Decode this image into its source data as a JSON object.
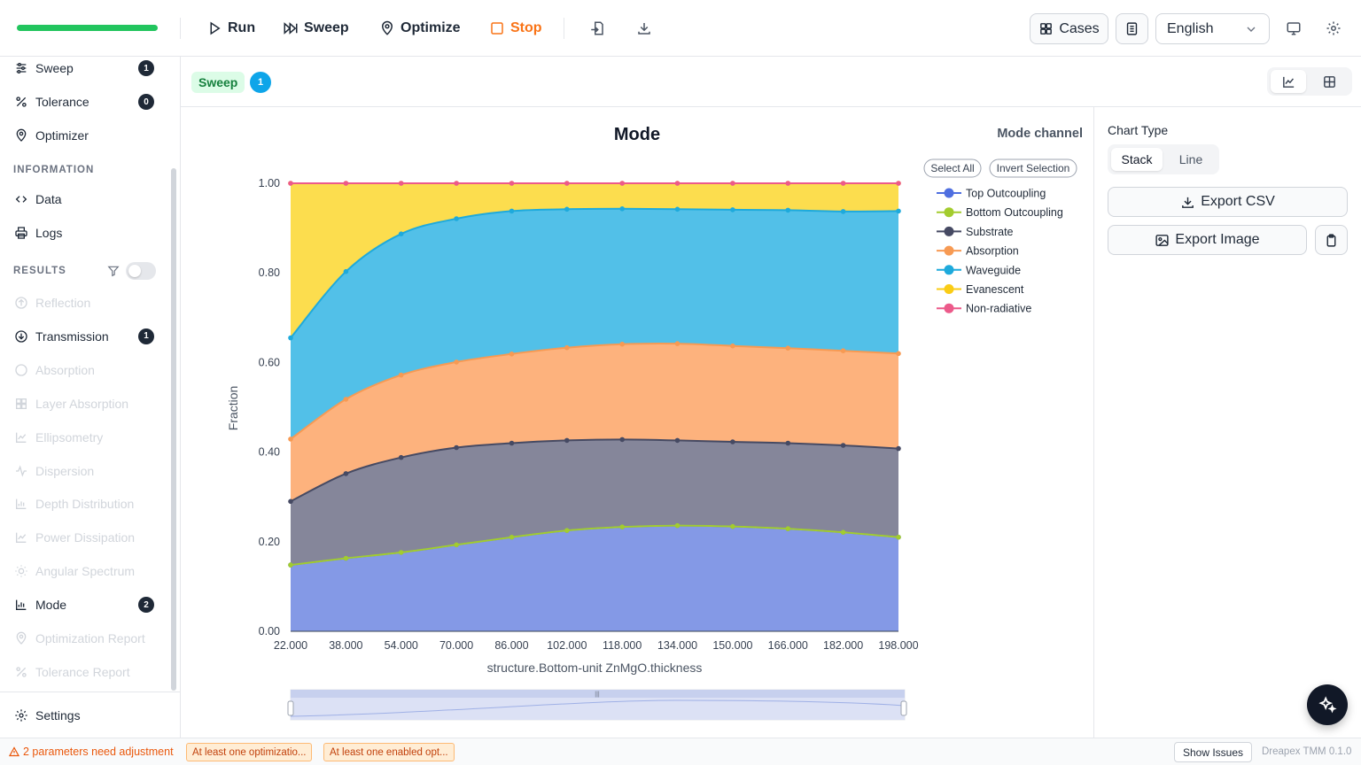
{
  "toolbar": {
    "progress": 1.0,
    "run_label": "Run",
    "sweep_label": "Sweep",
    "optimize_label": "Optimize",
    "stop_label": "Stop",
    "cases_label": "Cases",
    "language": "English"
  },
  "sidebar": {
    "top_items": [
      {
        "label": "Sweep",
        "icon": "sliders-icon",
        "count": "1"
      },
      {
        "label": "Tolerance",
        "icon": "percent-icon",
        "count": "0"
      },
      {
        "label": "Optimizer",
        "icon": "map-pin-icon"
      }
    ],
    "information_heading": "INFORMATION",
    "information_items": [
      {
        "label": "Data",
        "icon": "code-icon"
      },
      {
        "label": "Logs",
        "icon": "printer-icon"
      }
    ],
    "results_heading": "RESULTS",
    "results_filter_on": false,
    "results_items": [
      {
        "label": "Reflection",
        "icon": "arrow-up-circle-icon",
        "enabled": false
      },
      {
        "label": "Transmission",
        "icon": "arrow-down-circle-icon",
        "enabled": true,
        "count": "1"
      },
      {
        "label": "Absorption",
        "icon": "circle-icon",
        "enabled": false
      },
      {
        "label": "Layer Absorption",
        "icon": "grid-icon",
        "enabled": false
      },
      {
        "label": "Ellipsometry",
        "icon": "line-chart-icon",
        "enabled": false
      },
      {
        "label": "Dispersion",
        "icon": "activity-icon",
        "enabled": false
      },
      {
        "label": "Depth Distribution",
        "icon": "bar-chart-icon",
        "enabled": false
      },
      {
        "label": "Power Dissipation",
        "icon": "line-chart-icon",
        "enabled": false
      },
      {
        "label": "Angular Spectrum",
        "icon": "sun-icon",
        "enabled": false
      },
      {
        "label": "Mode",
        "icon": "bar-chart-icon",
        "enabled": true,
        "count": "2"
      },
      {
        "label": "Optimization Report",
        "icon": "map-pin-icon",
        "enabled": false
      },
      {
        "label": "Tolerance Report",
        "icon": "percent-icon",
        "enabled": false
      }
    ],
    "settings_label": "Settings"
  },
  "content": {
    "tag_label": "Sweep",
    "tag_count": "1",
    "chart_type_label": "Chart Type",
    "chart_type_options": [
      "Stack",
      "Line"
    ],
    "chart_type_selected": "Stack",
    "export_csv_label": "Export CSV",
    "export_image_label": "Export Image"
  },
  "chart_data": {
    "type": "area",
    "stacked": true,
    "title": "Mode",
    "legend_title": "Mode channel",
    "select_all_label": "Select All",
    "invert_selection_label": "Invert Selection",
    "xlabel": "structure.Bottom-unit ZnMgO.thickness",
    "ylabel": "Fraction",
    "x": [
      22,
      38,
      54,
      70,
      86,
      102,
      118,
      134,
      150,
      166,
      182,
      198
    ],
    "x_tick_labels": [
      "22.000",
      "38.000",
      "54.000",
      "70.000",
      "86.000",
      "102.000",
      "118.000",
      "134.000",
      "150.000",
      "166.000",
      "182.000",
      "198.000"
    ],
    "y_tick_labels": [
      "0.00",
      "0.20",
      "0.40",
      "0.60",
      "0.80",
      "1.00"
    ],
    "ylim": [
      0,
      1
    ],
    "grid": false,
    "legend_position": "right",
    "series": [
      {
        "name": "Top Outcoupling",
        "color": "#4f6fe0",
        "fill": "#8499e6",
        "values": [
          0.148,
          0.163,
          0.176,
          0.193,
          0.21,
          0.225,
          0.233,
          0.236,
          0.234,
          0.229,
          0.221,
          0.21
        ]
      },
      {
        "name": "Bottom Outcoupling",
        "color": "#a3cc2e",
        "fill": "#bedc52",
        "values": [
          0.0,
          0.0,
          0.0,
          0.0,
          0.0,
          0.0,
          0.0,
          0.0,
          0.0,
          0.0,
          0.0,
          0.0
        ]
      },
      {
        "name": "Substrate",
        "color": "#464a63",
        "fill": "#85869a",
        "values": [
          0.142,
          0.189,
          0.212,
          0.217,
          0.21,
          0.201,
          0.195,
          0.19,
          0.189,
          0.191,
          0.194,
          0.198
        ]
      },
      {
        "name": "Absorption",
        "color": "#f79a53",
        "fill": "#fdb27d",
        "values": [
          0.139,
          0.166,
          0.184,
          0.191,
          0.199,
          0.207,
          0.213,
          0.216,
          0.214,
          0.212,
          0.211,
          0.212
        ]
      },
      {
        "name": "Waveguide",
        "color": "#1eaadc",
        "fill": "#52c0e8",
        "values": [
          0.226,
          0.285,
          0.315,
          0.32,
          0.319,
          0.309,
          0.302,
          0.3,
          0.304,
          0.308,
          0.311,
          0.318
        ]
      },
      {
        "name": "Evanescent",
        "color": "#facc15",
        "fill": "#fcdd4e",
        "values": [
          0.345,
          0.197,
          0.113,
          0.079,
          0.062,
          0.058,
          0.057,
          0.058,
          0.059,
          0.06,
          0.063,
          0.062
        ]
      },
      {
        "name": "Non-radiative",
        "color": "#ec5a8a",
        "fill": "#f07fa4",
        "values": [
          0.0,
          0.0,
          0.0,
          0.0,
          0.0,
          0.0,
          0.0,
          0.0,
          0.0,
          0.0,
          0.0,
          0.0
        ]
      }
    ]
  },
  "status": {
    "warning": "2 parameters need adjustment",
    "chips": [
      "At least one optimizatio...",
      "At least one enabled opt..."
    ],
    "show_issues_label": "Show Issues",
    "version": "Dreapex TMM 0.1.0"
  }
}
